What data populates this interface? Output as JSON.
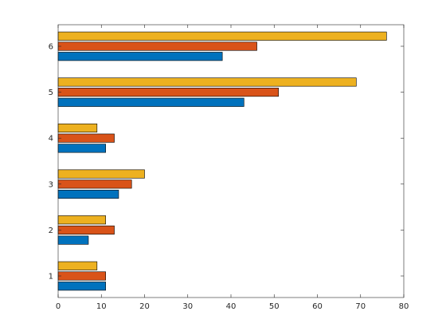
{
  "chart_data": {
    "type": "bar",
    "orientation": "horizontal",
    "title": "",
    "xlabel": "",
    "ylabel": "",
    "xlim": [
      0,
      80
    ],
    "x_ticks": [
      0,
      10,
      20,
      30,
      40,
      50,
      60,
      70,
      80
    ],
    "categories": [
      "1",
      "2",
      "3",
      "4",
      "5",
      "6"
    ],
    "series": [
      {
        "color": "#0072BD",
        "values": [
          11,
          7,
          14,
          11,
          43,
          38
        ]
      },
      {
        "color": "#D95319",
        "values": [
          11,
          13,
          17,
          13,
          51,
          46
        ]
      },
      {
        "color": "#EDB120",
        "values": [
          9,
          11,
          20,
          9,
          69,
          76
        ]
      }
    ],
    "grid": false,
    "legend": "none",
    "box": true
  }
}
